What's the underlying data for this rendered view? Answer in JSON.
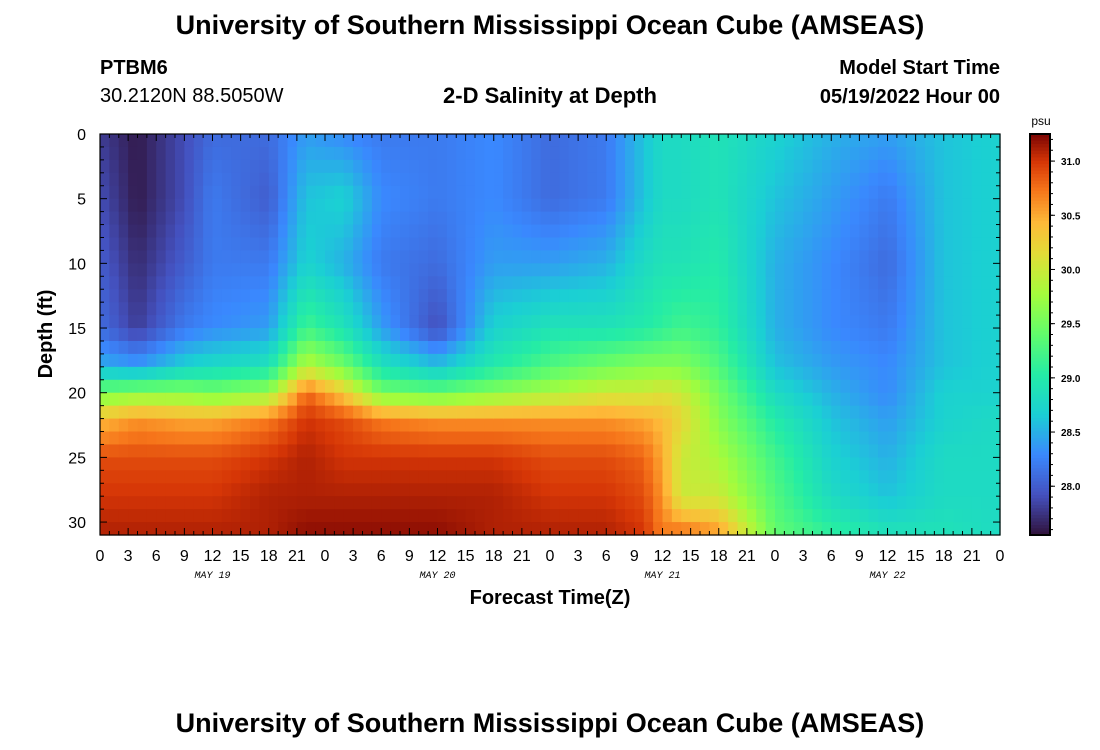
{
  "page_title": "University of Southern Mississippi Ocean Cube (AMSEAS)",
  "footer_title": "University of Southern Mississippi Ocean Cube (AMSEAS)",
  "station": {
    "name": "PTBM6",
    "coordinates": "30.2120N  88.5050W"
  },
  "model_start": {
    "label": "Model Start Time",
    "value": "05/19/2022 Hour 00"
  },
  "chart_data": {
    "type": "heatmap",
    "title": "2-D Salinity at Depth",
    "xlabel": "Forecast Time(Z)",
    "ylabel": "Depth (ft)",
    "x_range_hours": [
      0,
      96
    ],
    "y_range_ft": [
      0,
      31
    ],
    "x_tick_labels": [
      "0",
      "3",
      "6",
      "9",
      "12",
      "15",
      "18",
      "21",
      "0",
      "3",
      "6",
      "9",
      "12",
      "15",
      "18",
      "21",
      "0",
      "3",
      "6",
      "9",
      "12",
      "15",
      "18",
      "21",
      "0",
      "3",
      "6",
      "9",
      "12",
      "15",
      "18",
      "21",
      "0"
    ],
    "y_ticks": [
      0,
      5,
      10,
      15,
      20,
      25,
      30
    ],
    "date_labels": [
      {
        "label": "MAY 19",
        "hour": 12
      },
      {
        "label": "MAY 20",
        "hour": 36
      },
      {
        "label": "MAY 21",
        "hour": 60
      },
      {
        "label": "MAY 22",
        "hour": 84
      }
    ],
    "colorbar": {
      "unit": "psu",
      "min": 27.55,
      "max": 31.25,
      "ticks": [
        "28.0",
        "28.5",
        "29.0",
        "29.5",
        "30.0",
        "30.5",
        "31.0"
      ]
    },
    "profile_hours": [
      0,
      4,
      9,
      12,
      18,
      22,
      26,
      30,
      36,
      42,
      48,
      54,
      58,
      60,
      62,
      66,
      72,
      78,
      84,
      90,
      96
    ],
    "profile_depths_ft": [
      0,
      5,
      10,
      15,
      18,
      20,
      22,
      25,
      28,
      31
    ],
    "salinity_psu": [
      [
        27.8,
        27.9,
        28.0,
        28.1,
        28.5,
        29.5,
        30.4,
        30.9,
        31.0,
        31.1
      ],
      [
        27.6,
        27.6,
        27.7,
        27.8,
        28.4,
        29.6,
        30.6,
        30.9,
        31.0,
        31.1
      ],
      [
        27.9,
        27.9,
        28.0,
        28.2,
        28.7,
        29.6,
        30.5,
        30.9,
        31.0,
        31.1
      ],
      [
        28.1,
        28.2,
        28.2,
        28.3,
        28.8,
        29.5,
        30.5,
        30.9,
        31.0,
        31.1
      ],
      [
        28.1,
        28.0,
        28.2,
        28.4,
        28.9,
        29.7,
        30.7,
        31.0,
        31.1,
        31.1
      ],
      [
        28.4,
        28.6,
        28.7,
        29.2,
        29.9,
        30.8,
        31.0,
        31.1,
        31.1,
        31.2
      ],
      [
        28.3,
        28.7,
        28.5,
        28.9,
        29.5,
        30.3,
        30.9,
        31.0,
        31.1,
        31.2
      ],
      [
        28.2,
        28.3,
        28.2,
        28.4,
        28.9,
        29.5,
        30.7,
        31.0,
        31.1,
        31.2
      ],
      [
        28.2,
        28.2,
        28.1,
        27.9,
        28.6,
        29.4,
        30.6,
        31.0,
        31.1,
        31.2
      ],
      [
        28.3,
        28.3,
        28.4,
        28.7,
        29.0,
        29.6,
        30.6,
        31.0,
        31.1,
        31.1
      ],
      [
        28.1,
        28.1,
        28.4,
        28.9,
        29.3,
        29.8,
        30.6,
        30.9,
        31.0,
        31.1
      ],
      [
        28.2,
        28.2,
        28.5,
        28.9,
        29.5,
        30.0,
        30.6,
        30.9,
        31.0,
        31.1
      ],
      [
        28.6,
        28.6,
        28.8,
        29.0,
        29.6,
        30.0,
        30.5,
        30.8,
        30.9,
        31.0
      ],
      [
        28.8,
        28.8,
        28.9,
        29.1,
        29.6,
        30.1,
        30.4,
        30.5,
        30.6,
        30.7
      ],
      [
        28.8,
        28.8,
        28.9,
        29.2,
        29.6,
        30.0,
        30.2,
        30.0,
        30.0,
        30.8
      ],
      [
        28.9,
        28.9,
        29.0,
        29.1,
        29.3,
        29.5,
        29.6,
        29.8,
        30.0,
        30.6
      ],
      [
        28.7,
        28.6,
        28.5,
        28.5,
        28.6,
        28.8,
        29.0,
        29.2,
        29.3,
        29.4
      ],
      [
        28.5,
        28.4,
        28.3,
        28.3,
        28.4,
        28.5,
        28.6,
        28.7,
        28.8,
        29.1
      ],
      [
        28.4,
        28.2,
        28.1,
        28.2,
        28.3,
        28.3,
        28.4,
        28.5,
        28.6,
        28.9
      ],
      [
        28.6,
        28.6,
        28.6,
        28.6,
        28.6,
        28.7,
        28.7,
        28.8,
        28.8,
        28.9
      ],
      [
        28.7,
        28.7,
        28.7,
        28.7,
        28.7,
        28.7,
        28.8,
        28.8,
        28.8,
        28.8
      ]
    ]
  }
}
